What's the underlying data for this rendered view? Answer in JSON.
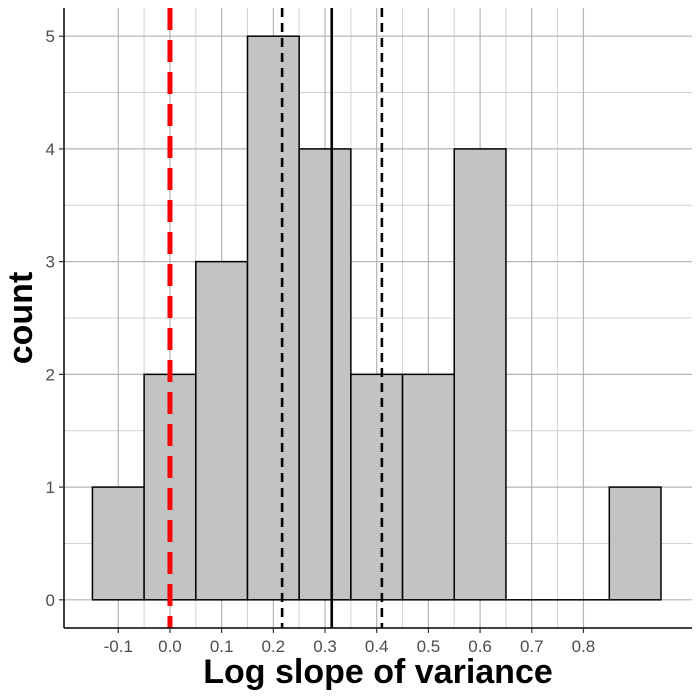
{
  "chart_data": {
    "type": "bar",
    "subtype": "histogram",
    "title": "",
    "xlabel": "Log slope of variance",
    "ylabel": "count",
    "bin_width": 0.1,
    "bins": [
      {
        "x0": -0.15,
        "x1": -0.05,
        "count": 1
      },
      {
        "x0": -0.05,
        "x1": 0.05,
        "count": 2
      },
      {
        "x0": 0.05,
        "x1": 0.15,
        "count": 3
      },
      {
        "x0": 0.15,
        "x1": 0.25,
        "count": 5
      },
      {
        "x0": 0.25,
        "x1": 0.35,
        "count": 4
      },
      {
        "x0": 0.35,
        "x1": 0.45,
        "count": 2
      },
      {
        "x0": 0.45,
        "x1": 0.55,
        "count": 2
      },
      {
        "x0": 0.55,
        "x1": 0.65,
        "count": 4
      },
      {
        "x0": 0.65,
        "x1": 0.75,
        "count": 0
      },
      {
        "x0": 0.75,
        "x1": 0.85,
        "count": 0
      },
      {
        "x0": 0.85,
        "x1": 0.95,
        "count": 1
      }
    ],
    "xlim": [
      -0.205,
      1.01
    ],
    "ylim": [
      -0.25,
      5.25
    ],
    "x_ticks": [
      -0.1,
      0.0,
      0.1,
      0.2,
      0.3,
      0.4,
      0.5,
      0.6,
      0.7,
      0.8
    ],
    "x_tick_labels": [
      "-0.1",
      "0.0",
      "0.1",
      "0.2",
      "0.3",
      "0.4",
      "0.5",
      "0.6",
      "0.7",
      "0.8"
    ],
    "y_ticks": [
      0,
      1,
      2,
      3,
      4,
      5
    ],
    "y_tick_labels": [
      "0",
      "1",
      "2",
      "3",
      "4",
      "5"
    ],
    "grid": true,
    "reference_lines": [
      {
        "kind": "zero",
        "x": 0.0,
        "style": "dashed",
        "color": "#ff0000"
      },
      {
        "kind": "lower",
        "x": 0.217,
        "style": "dashed",
        "color": "#000000"
      },
      {
        "kind": "mean",
        "x": 0.313,
        "style": "solid",
        "color": "#000000"
      },
      {
        "kind": "upper",
        "x": 0.41,
        "style": "dashed",
        "color": "#000000"
      }
    ],
    "colors": {
      "bar_fill": "#c3c3c3",
      "bar_stroke": "#000000",
      "grid_major": "#b4b4b4",
      "grid_minor": "#d3d3d3"
    }
  }
}
